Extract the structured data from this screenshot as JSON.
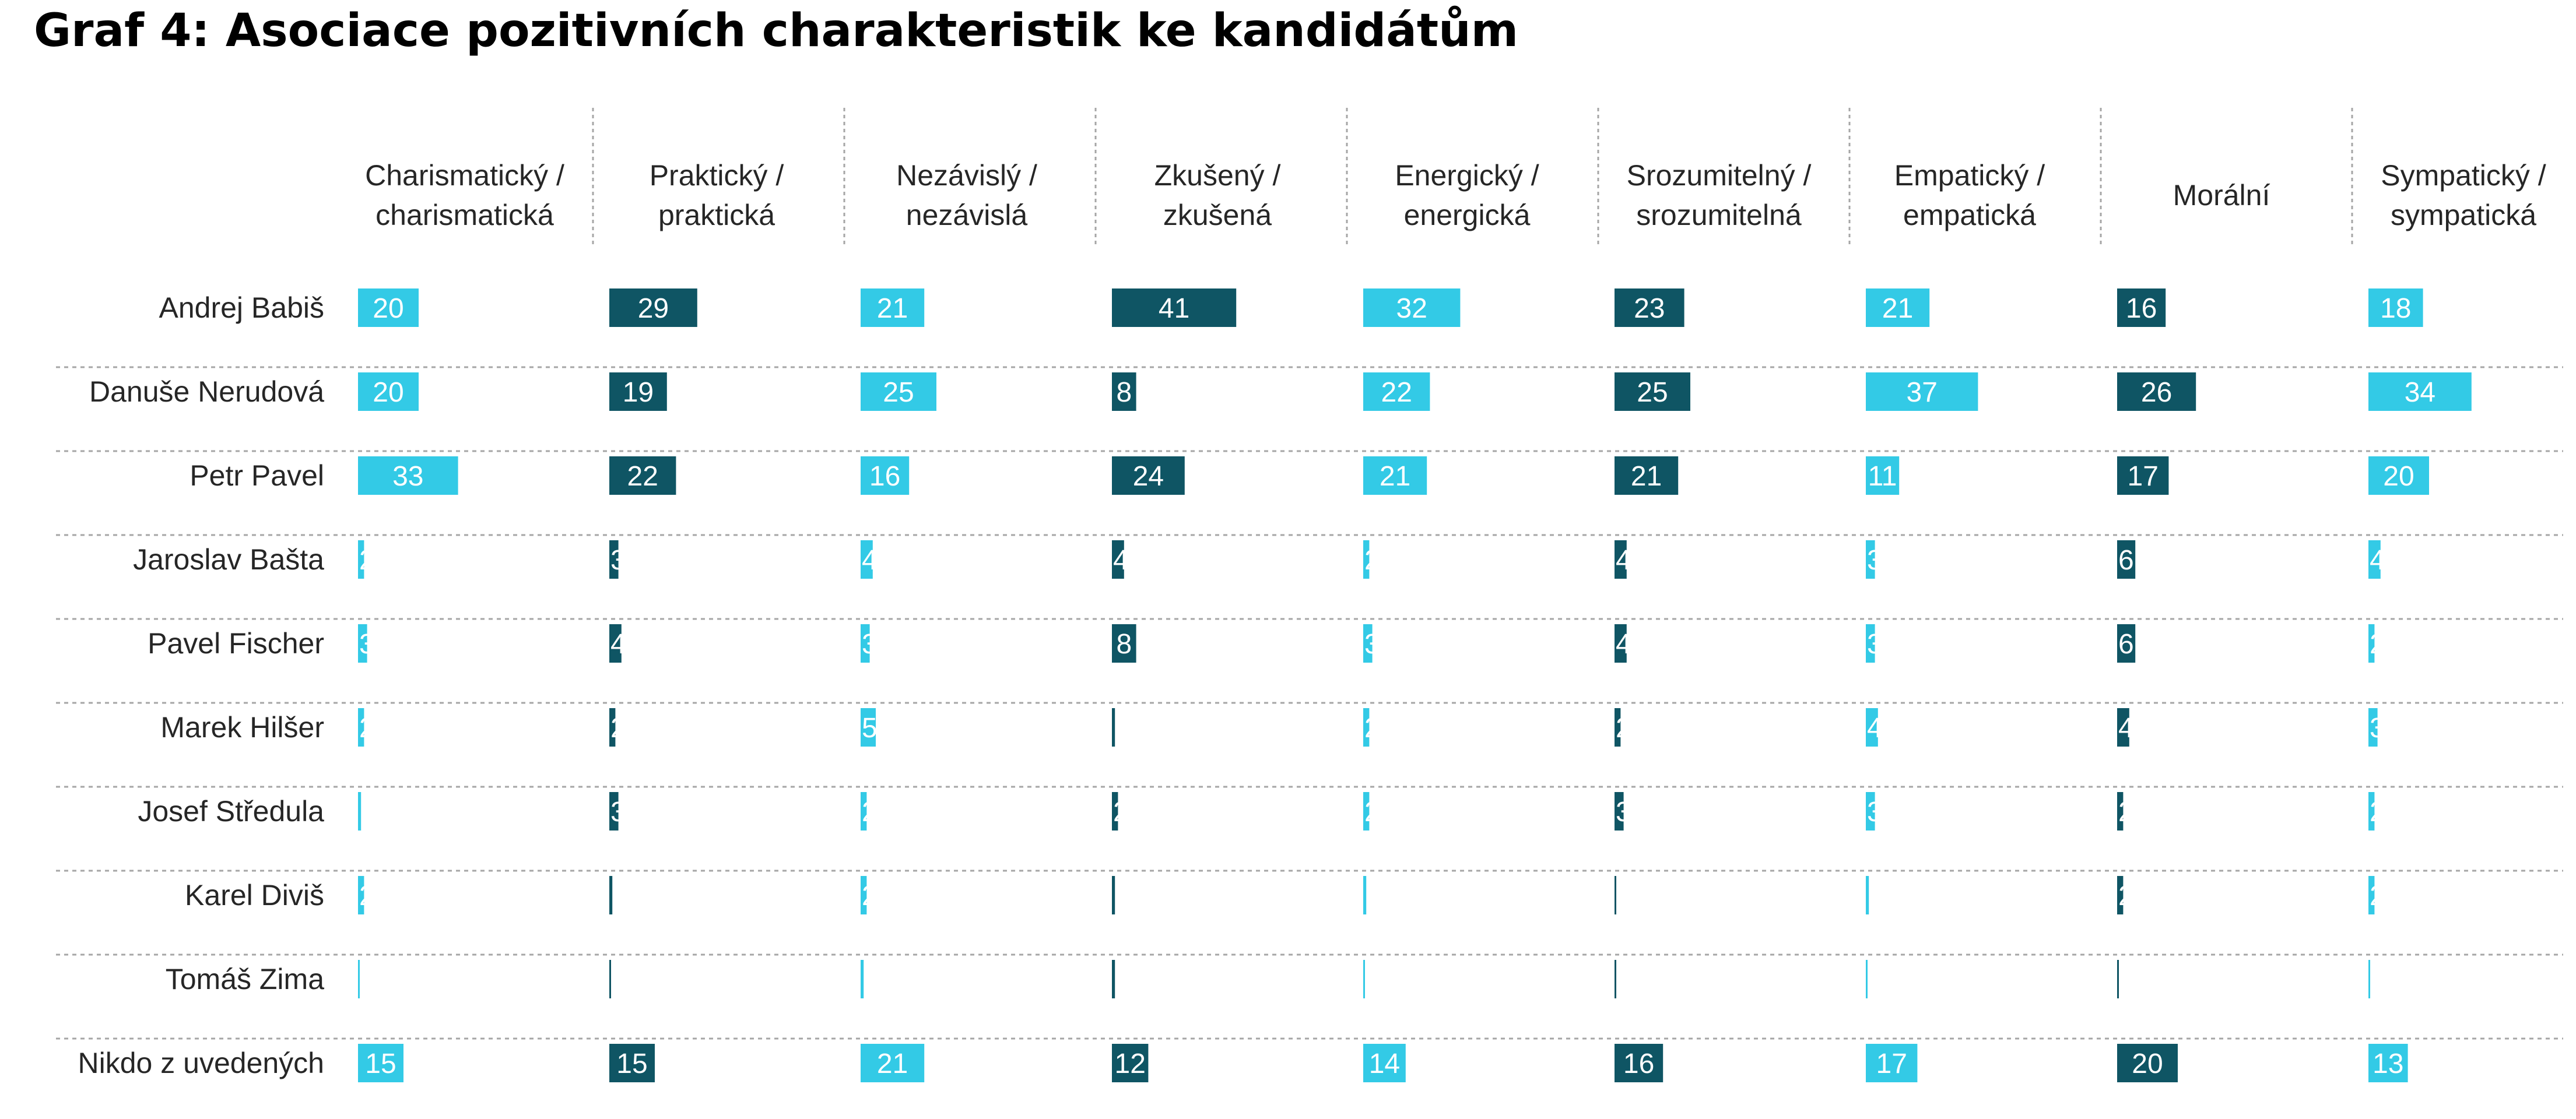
{
  "chart_data": {
    "type": "bar",
    "title": "Graf 4: Asociace pozitivních charakteristik ke kandidátům",
    "categories": [
      "Andrej Babiš",
      "Danuše Nerudová",
      "Petr Pavel",
      "Jaroslav Bašta",
      "Pavel Fischer",
      "Marek Hilšer",
      "Josef Středula",
      "Karel Diviš",
      "Tomáš Zima",
      "Nikdo z uvedených"
    ],
    "series": [
      {
        "name": "Charismatický / charismatická",
        "values": [
          20,
          20,
          33,
          2,
          3,
          2,
          1,
          2,
          0.5,
          15
        ]
      },
      {
        "name": "Praktický / praktická",
        "values": [
          29,
          19,
          22,
          3,
          4,
          2,
          3,
          1,
          0.5,
          15
        ]
      },
      {
        "name": "Nezávislý / nezávislá",
        "values": [
          21,
          25,
          16,
          4,
          3,
          5,
          2,
          2,
          1,
          21
        ]
      },
      {
        "name": "Zkušený / zkušená",
        "values": [
          41,
          8,
          24,
          4,
          8,
          1,
          2,
          1,
          1,
          12
        ]
      },
      {
        "name": "Energický / energická",
        "values": [
          32,
          22,
          21,
          2,
          3,
          2,
          2,
          1,
          0.5,
          14
        ]
      },
      {
        "name": "Srozumitelný / srozumitelná",
        "values": [
          23,
          25,
          21,
          4,
          4,
          2,
          3,
          0.5,
          0.5,
          16
        ]
      },
      {
        "name": "Empatický / empatická",
        "values": [
          21,
          37,
          11,
          3,
          3,
          4,
          3,
          1,
          0.5,
          17
        ]
      },
      {
        "name": "Morální",
        "values": [
          16,
          26,
          17,
          6,
          6,
          4,
          2,
          2,
          0.5,
          20
        ]
      },
      {
        "name": "Sympatický / sympatická",
        "values": [
          18,
          34,
          20,
          4,
          2,
          3,
          2,
          2,
          0.5,
          13
        ]
      }
    ],
    "value_labels": [
      [
        "20",
        "29",
        "21",
        "41",
        "32",
        "23",
        "21",
        "16",
        "18"
      ],
      [
        "20",
        "19",
        "25",
        "8",
        "22",
        "25",
        "37",
        "26",
        "34"
      ],
      [
        "33",
        "22",
        "16",
        "24",
        "21",
        "21",
        "11",
        "17",
        "20"
      ],
      [
        "2",
        "3",
        "4",
        "4",
        "2",
        "4",
        "3",
        "6",
        "4"
      ],
      [
        "3",
        "4",
        "3",
        "8",
        "3",
        "4",
        "3",
        "6",
        "2"
      ],
      [
        "2",
        "2",
        "5",
        "1",
        "2",
        "2",
        "4",
        "4",
        "3"
      ],
      [
        "1",
        "3",
        "2",
        "2",
        "2",
        "3",
        "3",
        "2",
        "2"
      ],
      [
        "2",
        "1",
        "2",
        "1",
        "1",
        "",
        "1",
        "2",
        "2"
      ],
      [
        "",
        "",
        "",
        "",
        "",
        "",
        "",
        "",
        ""
      ],
      [
        "15",
        "15",
        "21",
        "12",
        "14",
        "16",
        "17",
        "20",
        "13"
      ]
    ],
    "xlim": [
      0,
      45
    ],
    "grid": false,
    "legend": "none",
    "colors": {
      "light": "#33cae6",
      "dark": "#0f5564",
      "label": "#ffffff",
      "text": "#262626",
      "separator": "#a6a6a6"
    }
  }
}
